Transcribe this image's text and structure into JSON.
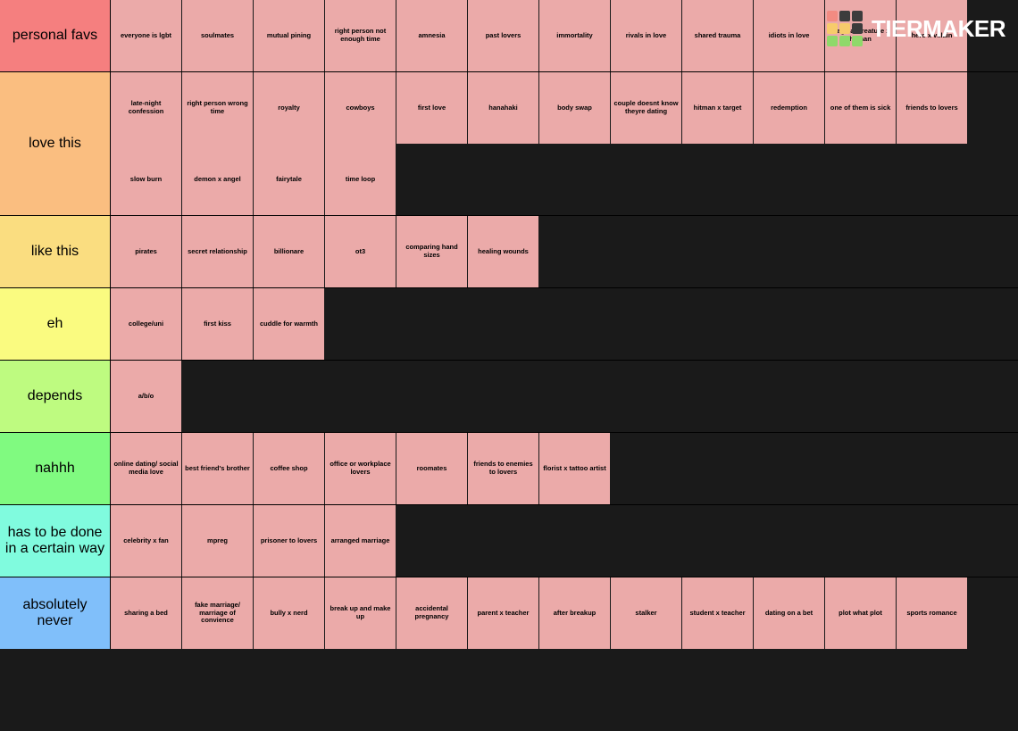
{
  "logo": {
    "text": "TIERMAKER",
    "grid_colors": [
      "#f28b82",
      "#3c3c3c",
      "#3c3c3c",
      "#f7cb6b",
      "#f7cb6b",
      "#3c3c3c",
      "#8fd96a",
      "#8fd96a",
      "#8fd96a"
    ]
  },
  "tile_color": "#ebaaa9",
  "background_color": "#1a1a1a",
  "tiers": [
    {
      "label": "personal favs",
      "color": "#f57f7f",
      "items": [
        "everyone is lgbt",
        "soulmates",
        "mutual pining",
        "right person not enough time",
        "amnesia",
        "past lovers",
        "immortality",
        "rivals in love",
        "shared trauma",
        "idiots in love",
        "magical creature x human",
        "hero x villain"
      ]
    },
    {
      "label": "love this",
      "color": "#fabe80",
      "items": [
        "late-night confession",
        "right person wrong time",
        "royalty",
        "cowboys",
        "first love",
        "hanahaki",
        "body swap",
        "couple doesnt know theyre dating",
        "hitman x target",
        "redemption",
        "one of them is sick",
        "friends to lovers",
        "slow burn",
        "demon x angel",
        "fairytale",
        "time loop"
      ]
    },
    {
      "label": "like this",
      "color": "#fadd80",
      "items": [
        "pirates",
        "secret relationship",
        "billionare",
        "ot3",
        "comparing hand sizes",
        "healing wounds"
      ]
    },
    {
      "label": "eh",
      "color": "#fafb80",
      "items": [
        "college/uni",
        "first kiss",
        "cuddle for warmth"
      ]
    },
    {
      "label": "depends",
      "color": "#befb80",
      "items": [
        "a/b/o"
      ]
    },
    {
      "label": "nahhh",
      "color": "#80fa80",
      "items": [
        "online dating/ social media love",
        "best friend's brother",
        "coffee shop",
        "office or workplace lovers",
        "roomates",
        "friends to enemies to lovers",
        "florist x tattoo artist"
      ]
    },
    {
      "label": "has to be done in a certain way",
      "color": "#80fbde",
      "items": [
        "celebrity x fan",
        "mpreg",
        "prisoner to lovers",
        "arranged marriage"
      ]
    },
    {
      "label": "absolutely never",
      "color": "#80bffa",
      "items": [
        "sharing a bed",
        "fake marriage/ marriage of convience",
        "bully x nerd",
        "break up and make up",
        "accidental pregnancy",
        "parent x teacher",
        "after breakup",
        "stalker",
        "student x teacher",
        "dating on a bet",
        "plot what plot",
        "sports romance"
      ]
    }
  ]
}
